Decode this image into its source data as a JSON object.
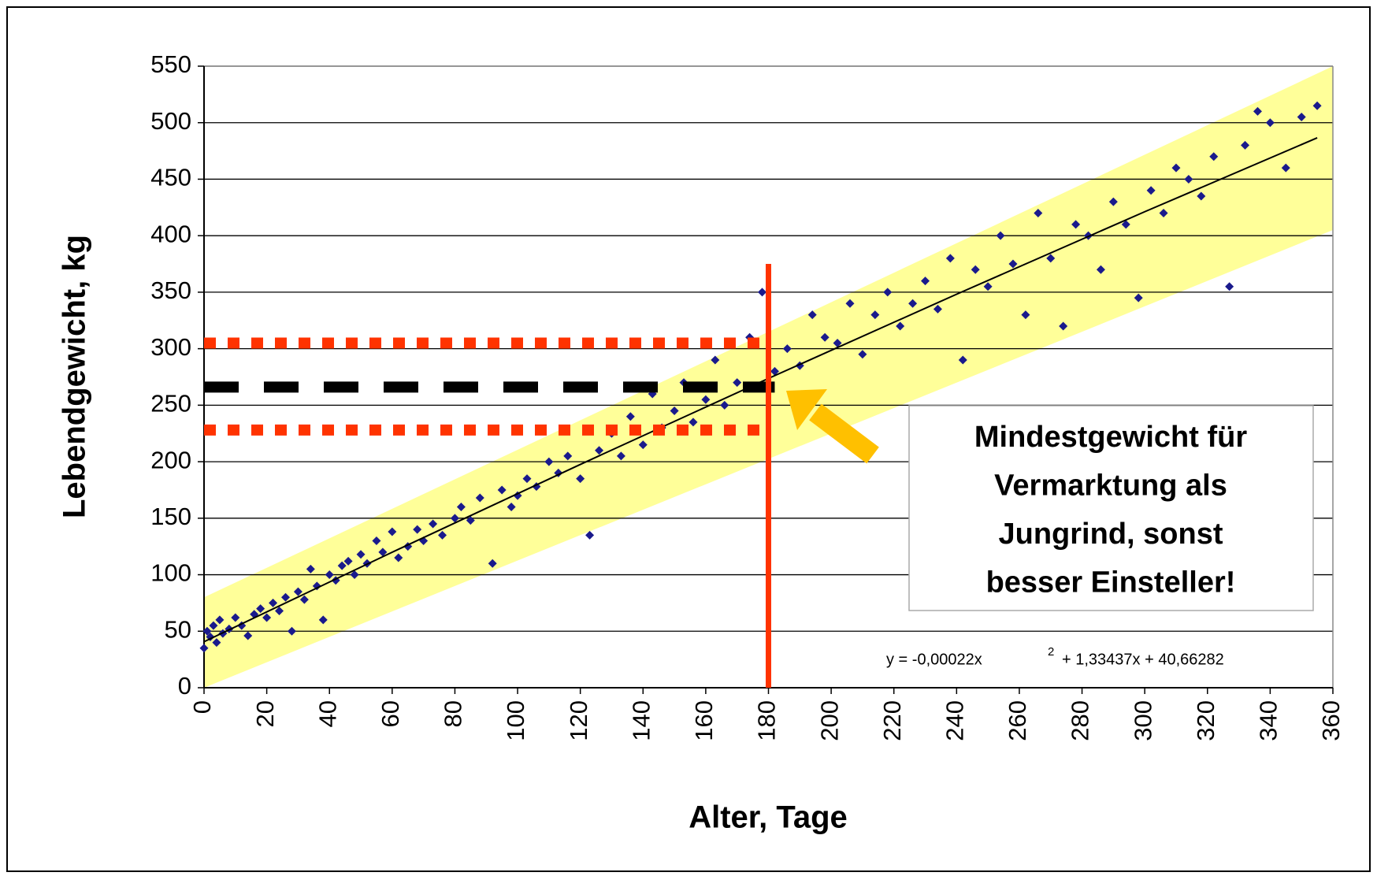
{
  "chart_data": {
    "type": "scatter",
    "x_label": "Alter, Tage",
    "y_label": "Lebendgewicht, kg",
    "xlim": [
      0,
      360
    ],
    "ylim": [
      0,
      550
    ],
    "xticks": [
      0,
      20,
      40,
      60,
      80,
      100,
      120,
      140,
      160,
      180,
      200,
      220,
      240,
      260,
      280,
      300,
      320,
      340,
      360
    ],
    "yticks": [
      0,
      50,
      100,
      150,
      200,
      250,
      300,
      350,
      400,
      450,
      500,
      550
    ],
    "grid": true,
    "x": [
      0,
      1,
      2,
      3,
      4,
      5,
      6,
      8,
      10,
      12,
      14,
      16,
      18,
      20,
      22,
      24,
      26,
      28,
      30,
      32,
      34,
      36,
      38,
      40,
      42,
      44,
      46,
      48,
      50,
      52,
      55,
      57,
      60,
      62,
      65,
      68,
      70,
      73,
      76,
      80,
      82,
      85,
      88,
      92,
      95,
      98,
      100,
      103,
      106,
      110,
      113,
      116,
      120,
      123,
      126,
      130,
      133,
      136,
      140,
      143,
      146,
      150,
      153,
      156,
      160,
      163,
      166,
      170,
      174,
      178,
      182,
      186,
      190,
      194,
      198,
      202,
      206,
      210,
      214,
      218,
      222,
      226,
      230,
      234,
      238,
      242,
      246,
      250,
      254,
      258,
      262,
      266,
      270,
      274,
      278,
      282,
      286,
      290,
      294,
      298,
      302,
      306,
      310,
      314,
      318,
      322,
      327,
      332,
      336,
      340,
      345,
      350,
      355
    ],
    "series": [
      {
        "color": "#1a1a8c",
        "values": [
          35,
          50,
          45,
          55,
          40,
          60,
          48,
          52,
          62,
          55,
          46,
          65,
          70,
          62,
          75,
          68,
          80,
          50,
          85,
          78,
          105,
          90,
          60,
          100,
          95,
          108,
          112,
          100,
          118,
          110,
          130,
          120,
          138,
          115,
          125,
          140,
          130,
          145,
          135,
          150,
          160,
          148,
          168,
          110,
          175,
          160,
          170,
          185,
          178,
          200,
          190,
          205,
          185,
          135,
          210,
          225,
          205,
          240,
          215,
          260,
          230,
          245,
          270,
          235,
          255,
          290,
          250,
          270,
          310,
          350,
          280,
          300,
          285,
          330,
          310,
          305,
          340,
          295,
          330,
          350,
          320,
          340,
          360,
          335,
          380,
          290,
          370,
          355,
          400,
          375,
          330,
          420,
          380,
          320,
          410,
          400,
          370,
          430,
          410,
          345,
          440,
          420,
          460,
          450,
          435,
          470,
          355,
          480,
          510,
          500,
          460,
          505,
          515
        ]
      }
    ],
    "band": {
      "x": [
        0,
        360
      ],
      "lower": [
        0,
        405
      ],
      "upper": [
        80,
        550
      ],
      "color": "#ffff99"
    },
    "trend": {
      "x": [
        0,
        60,
        120,
        180,
        240,
        300,
        355
      ],
      "y": [
        40.7,
        119.9,
        197.6,
        273.7,
        348.2,
        421.2,
        486.6
      ],
      "color": "#000000"
    },
    "hlines": [
      {
        "y": 305,
        "xlim": [
          0,
          178
        ],
        "color": "#ff3300",
        "dash": "dotted"
      },
      {
        "y": 266,
        "xlim": [
          0,
          182
        ],
        "color": "#000000",
        "dash": "dashed"
      },
      {
        "y": 228,
        "xlim": [
          0,
          178
        ],
        "color": "#ff3300",
        "dash": "dotted"
      }
    ],
    "vline": {
      "x": 180,
      "ylim": [
        0,
        375
      ],
      "color": "#ff3300"
    },
    "annotation": [
      "Mindestgewicht für",
      "Vermarktung als",
      "Jungrind, sonst",
      "besser Einsteller!"
    ],
    "equation": [
      "y = -0,00022x",
      "2",
      "+ 1,33437x + 40,66282"
    ]
  }
}
